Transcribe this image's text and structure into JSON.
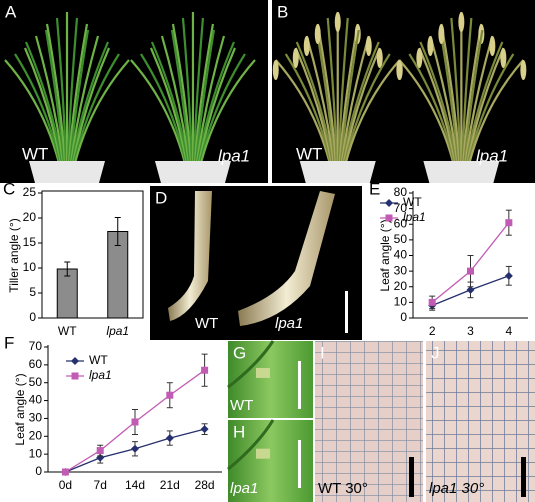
{
  "photos": [
    {
      "label": "A",
      "captions": [
        "WT",
        "lpa1"
      ]
    },
    {
      "label": "B",
      "captions": [
        "WT",
        "lpa1"
      ]
    },
    {
      "label": "D",
      "captions": [
        "WT",
        "lpa1"
      ]
    },
    {
      "label": "G",
      "captions": [
        "WT"
      ]
    },
    {
      "label": "H",
      "captions": [
        "lpa1"
      ]
    },
    {
      "label": "I",
      "captions": [
        "WT 30°"
      ]
    },
    {
      "label": "J",
      "captions": [
        "lpa1 30°"
      ]
    }
  ],
  "chart_data": [
    {
      "type": "bar",
      "panel": "C",
      "ylabel": "Tiller angle (°)",
      "categories": [
        "WT",
        "lpa1"
      ],
      "values": [
        9.8,
        17.3
      ],
      "errors": [
        1.4,
        2.8
      ],
      "color": "#8c8c8c",
      "ylim": [
        0,
        25
      ],
      "yticks": [
        0,
        5,
        10,
        15,
        20,
        25
      ]
    },
    {
      "type": "line",
      "panel": "E",
      "ylabel": "Leaf angle (°)",
      "legend": "upper left",
      "categories": [
        "2",
        "3",
        "4"
      ],
      "series": [
        {
          "name": "WT",
          "color": "#26306e",
          "marker": "diamond",
          "values": [
            8,
            18,
            27
          ],
          "errors": [
            3,
            5,
            6
          ]
        },
        {
          "name": "lpa1",
          "color": "#c25bb4",
          "marker": "square",
          "values": [
            10,
            30,
            61
          ],
          "errors": [
            4,
            10,
            8
          ]
        }
      ],
      "ylim": [
        0,
        80
      ],
      "yticks": [
        0,
        10,
        20,
        30,
        40,
        50,
        60,
        70,
        80
      ]
    },
    {
      "type": "line",
      "panel": "F",
      "ylabel": "Leaf angle (°)",
      "legend": "upper left",
      "categories": [
        "0d",
        "7d",
        "14d",
        "21d",
        "28d"
      ],
      "series": [
        {
          "name": "WT",
          "color": "#26306e",
          "marker": "diamond",
          "values": [
            0,
            8,
            13,
            19,
            24
          ],
          "errors": [
            0,
            3,
            4,
            4,
            3
          ]
        },
        {
          "name": "lpa1",
          "color": "#c25bb4",
          "marker": "square",
          "values": [
            0,
            12,
            28,
            43,
            57
          ],
          "errors": [
            0,
            3,
            7,
            7,
            9
          ]
        }
      ],
      "ylim": [
        0,
        70
      ],
      "yticks": [
        0,
        10,
        20,
        30,
        40,
        50,
        60,
        70
      ]
    }
  ]
}
